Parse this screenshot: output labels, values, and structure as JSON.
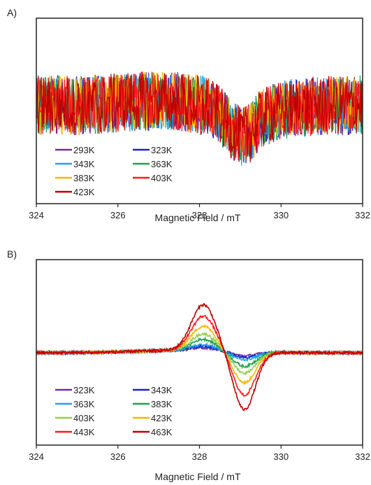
{
  "chart_data": [
    {
      "panel": "A)",
      "type": "line",
      "xlabel": "Magnetic Field / mT",
      "ylabel": "",
      "xlim": [
        324,
        332
      ],
      "xticks": [
        "324",
        "326",
        "328",
        "330",
        "332"
      ],
      "grid": false,
      "legend": "bottom-left",
      "series": [
        {
          "name": "293K",
          "color": "#7030a0"
        },
        {
          "name": "323K",
          "color": "#1f1fd0"
        },
        {
          "name": "343K",
          "color": "#1aa7e0"
        },
        {
          "name": "363K",
          "color": "#21a24a"
        },
        {
          "name": "383K",
          "color": "#f5b800"
        },
        {
          "name": "403K",
          "color": "#ff1a1a"
        },
        {
          "name": "423K",
          "color": "#c00000"
        }
      ],
      "x": [
        324,
        324.5,
        325,
        325.5,
        326,
        326.5,
        327,
        327.5,
        328,
        328.25,
        328.5,
        328.75,
        329,
        329.25,
        329.5,
        330,
        330.5,
        331,
        331.5,
        332
      ],
      "envelope": [
        0.05,
        0.05,
        0.04,
        0.06,
        0.08,
        0.1,
        0.12,
        0.1,
        0.06,
        0.02,
        -0.1,
        -0.28,
        -0.4,
        -0.35,
        -0.15,
        -0.02,
        0.02,
        0.04,
        0.04,
        0.05
      ]
    },
    {
      "panel": "B)",
      "type": "line",
      "xlabel": "Magnetic Field / mT",
      "ylabel": "",
      "xlim": [
        324,
        332
      ],
      "xticks": [
        "324",
        "326",
        "328",
        "330",
        "332"
      ],
      "grid": false,
      "legend": "bottom-left",
      "x_peak_max": 328.1,
      "x_peak_min": 329.1,
      "series": [
        {
          "name": "323K",
          "color": "#7030a0",
          "amplitude": 0.04
        },
        {
          "name": "343K",
          "color": "#1f1fd0",
          "amplitude": 0.06
        },
        {
          "name": "363K",
          "color": "#1aa7e0",
          "amplitude": 0.08
        },
        {
          "name": "383K",
          "color": "#21a24a",
          "amplitude": 0.15
        },
        {
          "name": "403K",
          "color": "#92d050",
          "amplitude": 0.22
        },
        {
          "name": "423K",
          "color": "#f5b800",
          "amplitude": 0.32
        },
        {
          "name": "443K",
          "color": "#ff1a1a",
          "amplitude": 0.45
        },
        {
          "name": "463K",
          "color": "#c00000",
          "amplitude": 0.6
        }
      ]
    }
  ]
}
